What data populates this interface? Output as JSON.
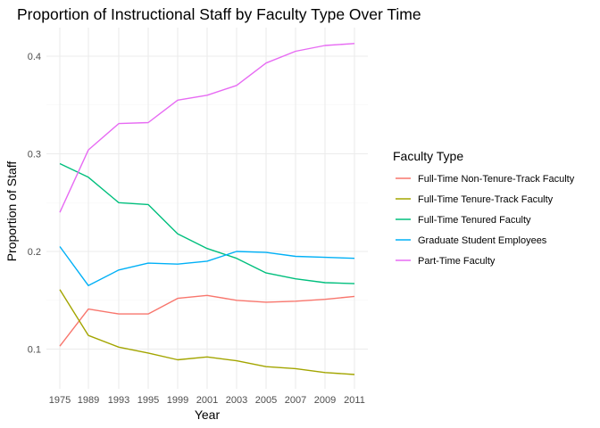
{
  "chart_data": {
    "type": "line",
    "title": "Proportion of Instructional Staff by Faculty Type Over Time",
    "xlabel": "Year",
    "ylabel": "Proportion of Staff",
    "x": [
      "1975",
      "1989",
      "1993",
      "1995",
      "1999",
      "2001",
      "2003",
      "2005",
      "2007",
      "2009",
      "2011"
    ],
    "yticks": [
      0.1,
      0.2,
      0.3,
      0.4
    ],
    "ylim": [
      0.06,
      0.425
    ],
    "grid": true,
    "legend_title": "Faculty Type",
    "legend_position": "right",
    "series": [
      {
        "name": "Full-Time Non-Tenure-Track Faculty",
        "color": "#F8766D",
        "values": [
          0.103,
          0.141,
          0.136,
          0.136,
          0.152,
          0.155,
          0.15,
          0.148,
          0.149,
          0.151,
          0.154
        ]
      },
      {
        "name": "Full-Time Tenure-Track Faculty",
        "color": "#A3A500",
        "values": [
          0.161,
          0.114,
          0.102,
          0.096,
          0.089,
          0.092,
          0.088,
          0.082,
          0.08,
          0.076,
          0.074
        ]
      },
      {
        "name": "Full-Time Tenured Faculty",
        "color": "#00BF7D",
        "values": [
          0.29,
          0.276,
          0.25,
          0.248,
          0.218,
          0.203,
          0.193,
          0.178,
          0.172,
          0.168,
          0.167
        ]
      },
      {
        "name": "Graduate Student Employees",
        "color": "#00B0F6",
        "values": [
          0.205,
          0.165,
          0.181,
          0.188,
          0.187,
          0.19,
          0.2,
          0.199,
          0.195,
          0.194,
          0.193
        ]
      },
      {
        "name": "Part-Time Faculty",
        "color": "#E76BF3",
        "values": [
          0.24,
          0.304,
          0.331,
          0.332,
          0.355,
          0.36,
          0.37,
          0.393,
          0.405,
          0.411,
          0.413
        ]
      }
    ]
  }
}
